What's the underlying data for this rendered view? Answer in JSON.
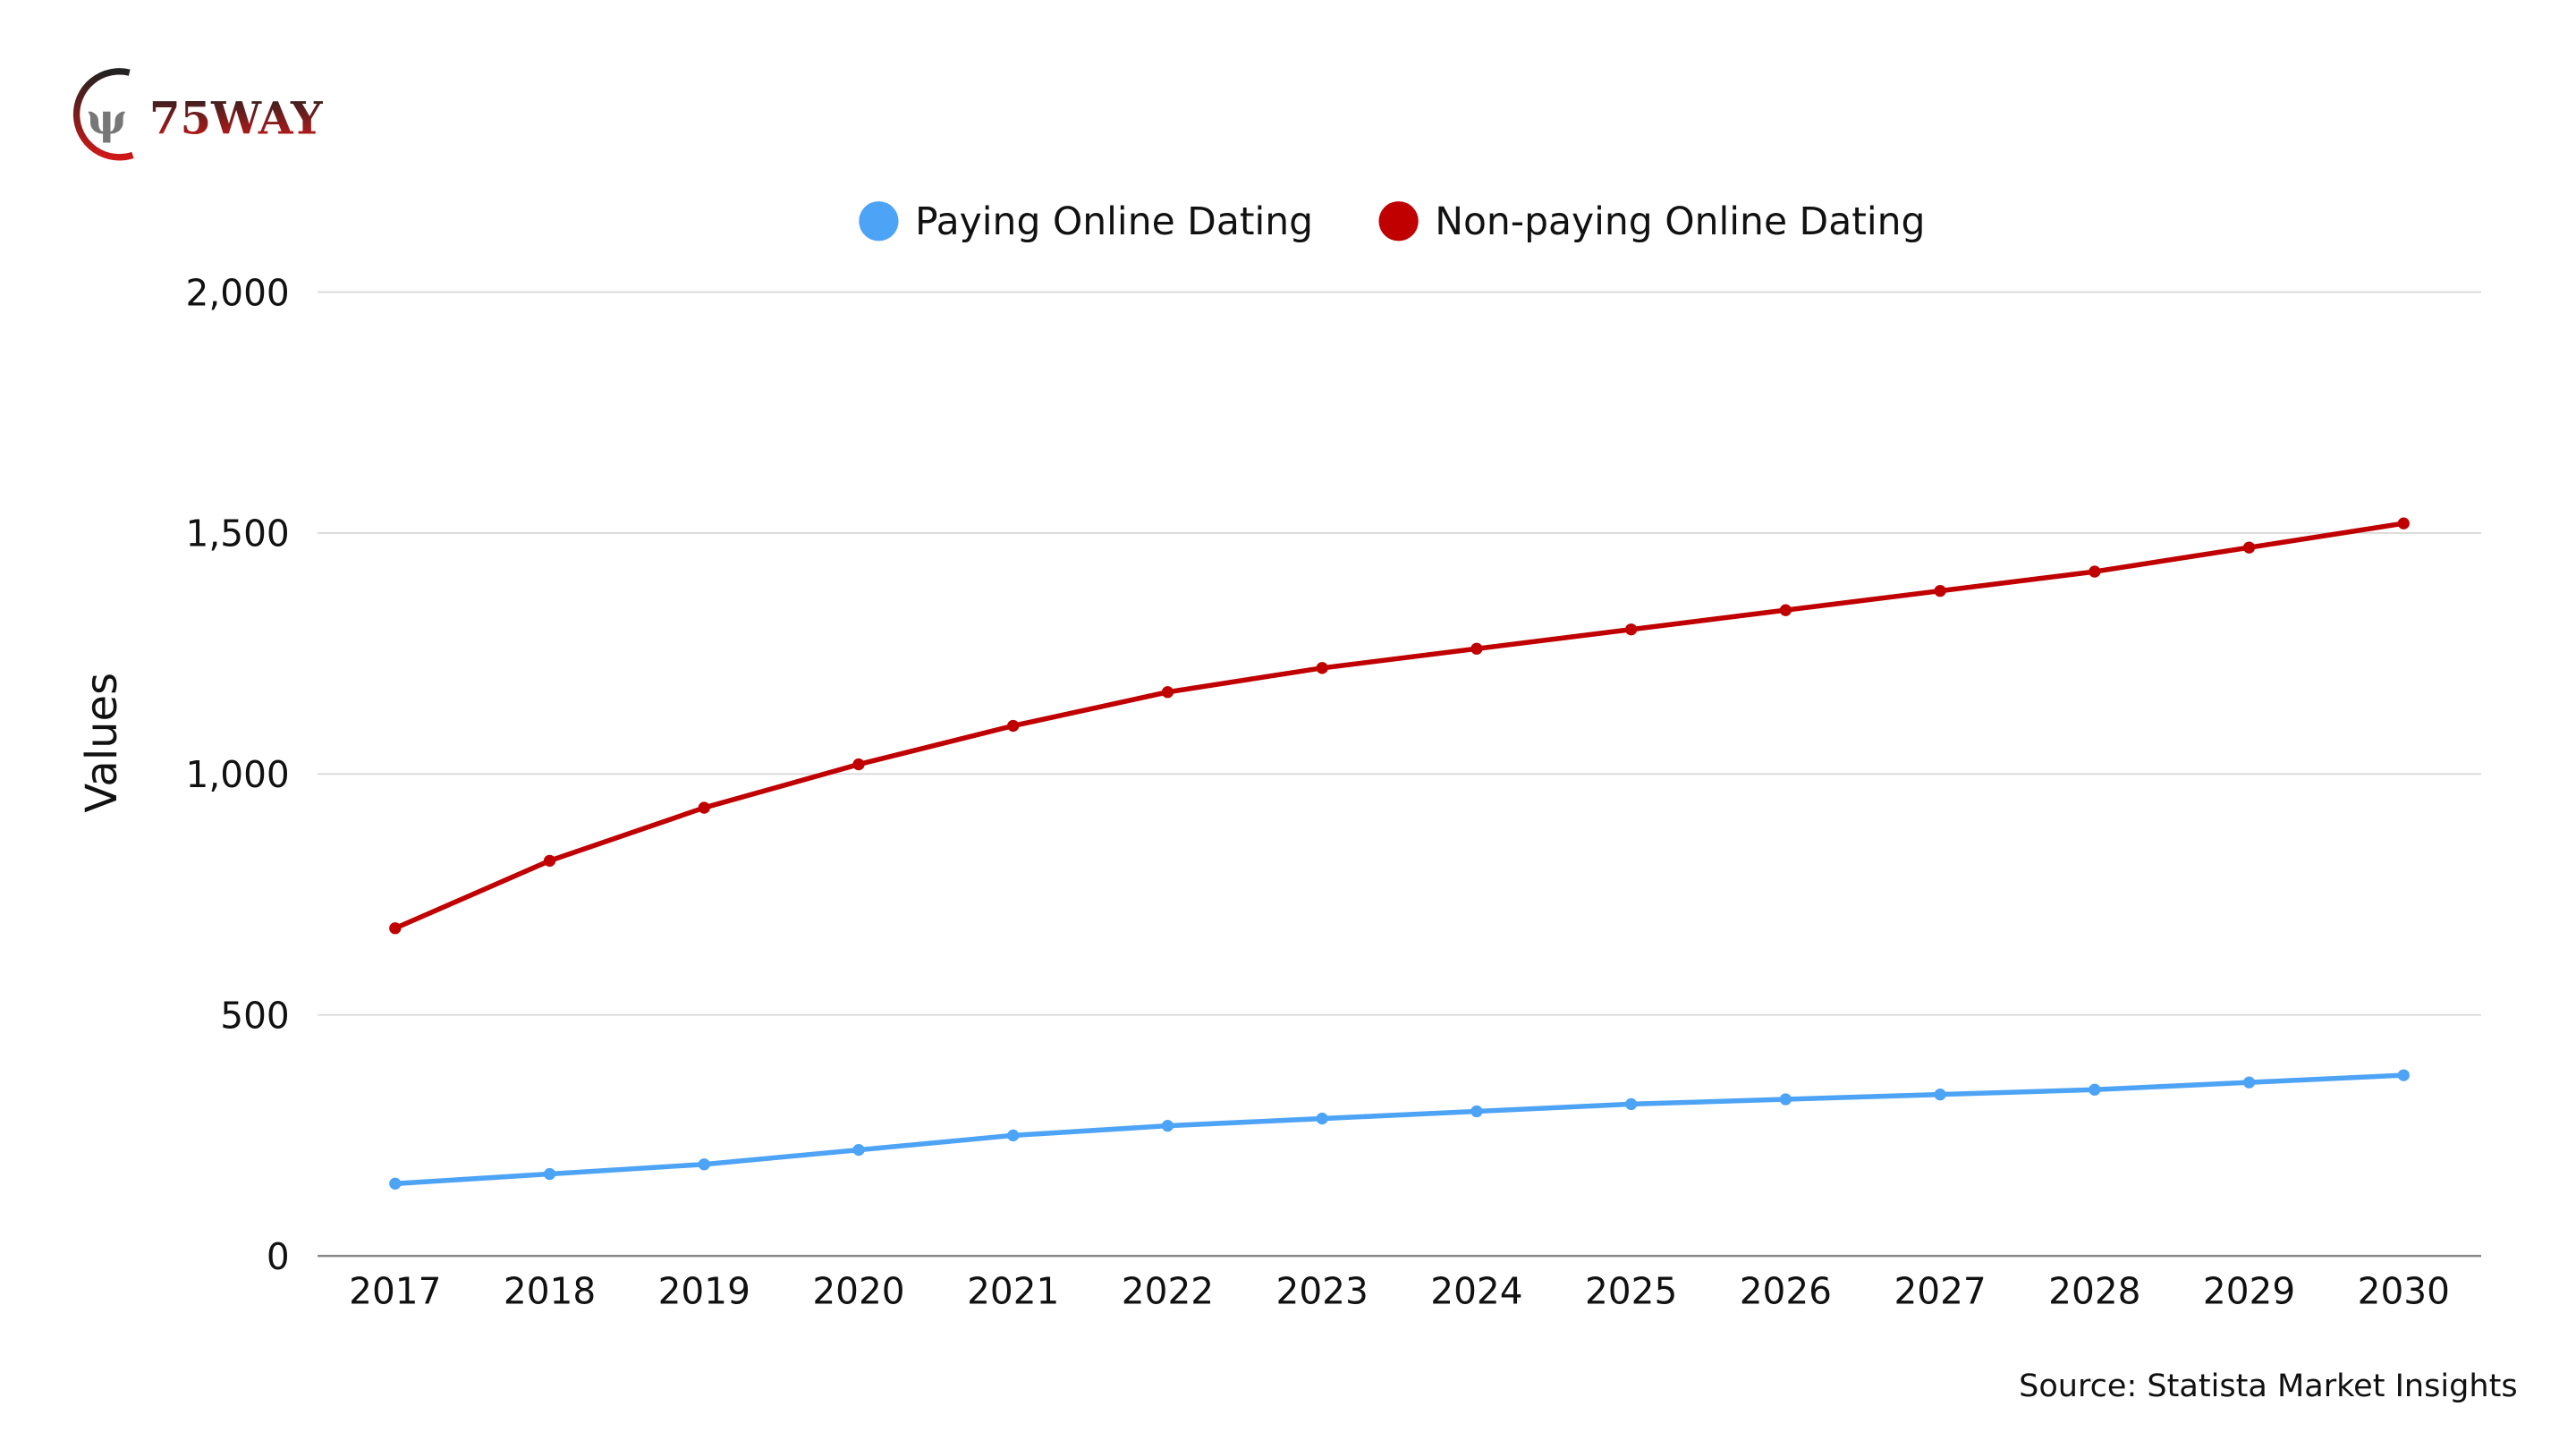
{
  "logo": {
    "text": "75WAY"
  },
  "source": "Source: Statista Market Insights",
  "colors": {
    "paying": "#4da3f5",
    "non_paying": "#c00000",
    "grid": "#d9d9d9",
    "axis": "#888888"
  },
  "chart_data": {
    "type": "line",
    "title": "",
    "xlabel": "",
    "ylabel": "Values",
    "ylim": [
      0,
      2000
    ],
    "yticks": [
      "0",
      "500",
      "1,000",
      "1,500",
      "2,000"
    ],
    "ytick_values": [
      0,
      500,
      1000,
      1500,
      2000
    ],
    "grid": true,
    "legend_position": "top-center",
    "x": [
      "2017",
      "2018",
      "2019",
      "2020",
      "2021",
      "2022",
      "2023",
      "2024",
      "2025",
      "2026",
      "2027",
      "2028",
      "2029",
      "2030"
    ],
    "series": [
      {
        "name": "Paying Online Dating",
        "color": "#4da3f5",
        "values": [
          150,
          170,
          190,
          220,
          250,
          270,
          285,
          300,
          315,
          325,
          335,
          345,
          360,
          375
        ]
      },
      {
        "name": "Non-paying Online Dating",
        "color": "#c00000",
        "values": [
          680,
          820,
          930,
          1020,
          1100,
          1170,
          1220,
          1260,
          1300,
          1340,
          1380,
          1420,
          1470,
          1520
        ]
      }
    ]
  }
}
